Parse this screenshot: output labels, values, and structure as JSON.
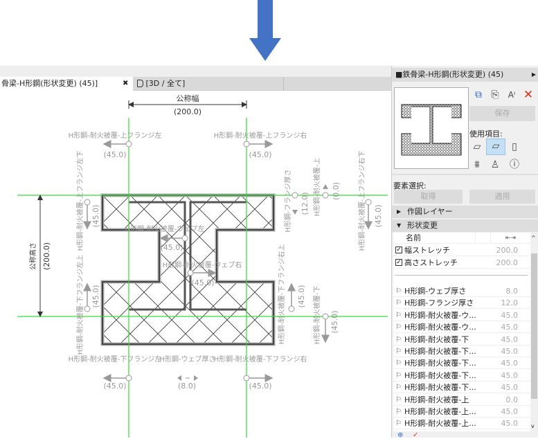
{
  "tabs": [
    {
      "label": "骨梁-H形鋼(形状変更) (45)]",
      "close": "✖"
    },
    {
      "label": "[3D / 全て]"
    }
  ],
  "drawing": {
    "nominal_width": {
      "label": "公称幅",
      "value": "(200.0)"
    },
    "nominal_height": {
      "label": "公称高さ",
      "value": "(200.0)"
    },
    "top_flange_left": {
      "label": "H形鋼-耐火被覆-上フランジ左",
      "value": "(45.0)"
    },
    "top_flange_right": {
      "label": "H形鋼-耐火被覆-上フランジ右",
      "value": "(45.0)"
    },
    "top_flange_left_bottom": {
      "label": "H形鋼-耐火被覆-上フランジ左下",
      "value": "(45.0)"
    },
    "bottom_flange_left_top": {
      "label": "H形鋼-耐火被覆-下フランジ左上",
      "value": "(45.0)"
    },
    "web_left": {
      "label": "H形鋼-耐火被覆-ウェブ左",
      "value": "(45.0)"
    },
    "web_right": {
      "label": "H形鋼-耐火被覆-ウェブ右",
      "value": "(45.0)"
    },
    "flange_thickness": {
      "label": "H形鋼-フランジ厚さ",
      "value": "(12.0)"
    },
    "cover_top": {
      "label": "H形鋼-耐火被覆-上",
      "value": "(0.0)"
    },
    "top_flange_right_bottom": {
      "label": "H形鋼-耐火被覆-上フランジ右下",
      "value": "(45.0)"
    },
    "bottom_flange_right_top": {
      "label": "H形鋼-耐火被覆-下フランジ右上",
      "value": "(45.0)"
    },
    "cover_bottom": {
      "label": "H形鋼-耐火被覆-下",
      "value": "(45.0)"
    },
    "bottom_flange_left": {
      "label": "H形鋼-耐火被覆-下フランジ左",
      "value": "(45.0)"
    },
    "web_thickness": {
      "label": "H形鋼-ウェブ厚さ",
      "value": "(8.0)"
    },
    "bottom_flange_right": {
      "label": "H形鋼-耐火被覆-下フランジ右",
      "value": "(45.0)"
    }
  },
  "panel": {
    "title": "■鉄骨梁-H形鋼(形状変更) (45)",
    "save": "保存",
    "used_items": "使用項目:",
    "element_select": "要素選択:",
    "get": "取得",
    "apply": "適用",
    "section_layer": "作図レイヤー",
    "section_shape": "形状変更",
    "col_name": "名前",
    "stretch_rows": [
      {
        "name": "幅ストレッチ",
        "value": "200.0",
        "checked": true
      },
      {
        "name": "高さストレッチ",
        "value": "200.0",
        "checked": true
      }
    ],
    "param_rows": [
      {
        "name": "H形鋼-ウェブ厚さ",
        "value": "8.0"
      },
      {
        "name": "H形鋼-フランジ厚さ",
        "value": "12.0"
      },
      {
        "name": "H形鋼-耐火被覆-ウ...",
        "value": "45.0"
      },
      {
        "name": "H形鋼-耐火被覆-ウ...",
        "value": "45.0"
      },
      {
        "name": "H形鋼-耐火被覆-下",
        "value": "45.0"
      },
      {
        "name": "H形鋼-耐火被覆-下...",
        "value": "45.0"
      },
      {
        "name": "H形鋼-耐火被覆-下...",
        "value": "45.0"
      },
      {
        "name": "H形鋼-耐火被覆-下...",
        "value": "45.0"
      },
      {
        "name": "H形鋼-耐火被覆-下...",
        "value": "45.0"
      },
      {
        "name": "H形鋼-耐火被覆-上",
        "value": "0.0"
      },
      {
        "name": "H形鋼-耐火被覆-上...",
        "value": "45.0"
      },
      {
        "name": "H形鋼-耐火被覆-上...",
        "value": "45.0"
      }
    ]
  },
  "colors": {
    "guide": "#33dd33",
    "arrow": "#4472c4",
    "delete": "#e03020",
    "selected": "#c5dff5"
  }
}
